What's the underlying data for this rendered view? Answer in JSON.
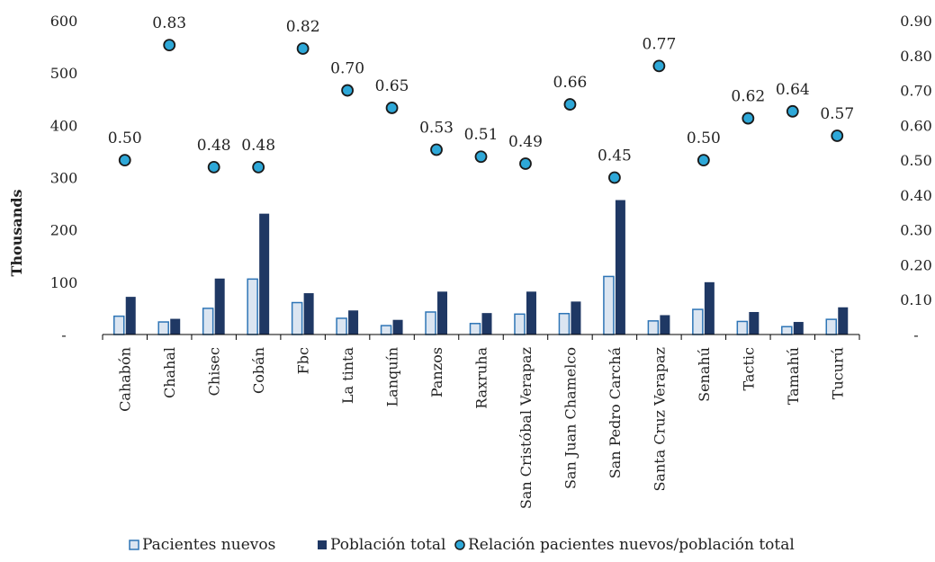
{
  "chart_data": {
    "type": "bar",
    "title": "",
    "xlabel": "",
    "ylabel": "Thousands",
    "categories": [
      "Cahabón",
      "Chahal",
      "Chisec",
      "Cobán",
      "Fbc",
      "La tinta",
      "Lanquín",
      "Panzos",
      "Raxruha",
      "San Cristóbal Verapaz",
      "San Juan Chamelco",
      "San Pedro Carchá",
      "Santa Cruz Verapaz",
      "Senahú",
      "Tactic",
      "Tamahú",
      "Tucurú"
    ],
    "series": [
      {
        "name": "Pacientes nuevos",
        "axis": "left",
        "type": "bar",
        "color": "#dbe5f1",
        "stroke": "#2e75b6",
        "values": [
          35,
          24,
          50,
          106,
          61,
          31,
          17,
          43,
          21,
          39,
          40,
          111,
          26,
          48,
          25,
          15,
          29
        ]
      },
      {
        "name": "Población total",
        "axis": "left",
        "type": "bar",
        "color": "#1f3864",
        "values": [
          72,
          30,
          107,
          231,
          79,
          46,
          28,
          82,
          41,
          82,
          63,
          257,
          37,
          100,
          43,
          24,
          52
        ]
      },
      {
        "name": "Relación pacientes nuevos/población total",
        "axis": "right",
        "type": "scatter",
        "color": "#2ea8d8",
        "stroke": "#1a1a1a",
        "values": [
          0.5,
          0.83,
          0.48,
          0.48,
          0.82,
          0.7,
          0.65,
          0.53,
          0.51,
          0.49,
          0.66,
          0.45,
          0.77,
          0.5,
          0.62,
          0.64,
          0.57
        ],
        "labels": [
          "0.50",
          "0.83",
          "0.48",
          "0.48",
          "0.82",
          "0.70",
          "0.65",
          "0.53",
          "0.51",
          "0.49",
          "0.66",
          "0.45",
          "0.77",
          "0.50",
          "0.62",
          "0.64",
          "0.57"
        ]
      }
    ],
    "y_left": {
      "min": 0,
      "max": 600,
      "ticks": [
        "-",
        "100",
        "200",
        "300",
        "400",
        "500",
        "600"
      ],
      "tick_values": [
        0,
        100,
        200,
        300,
        400,
        500,
        600
      ]
    },
    "y_right": {
      "min": 0,
      "max": 0.9,
      "ticks": [
        "-",
        "0.10",
        "0.20",
        "0.30",
        "0.40",
        "0.50",
        "0.60",
        "0.70",
        "0.80",
        "0.90"
      ],
      "tick_values": [
        0,
        0.1,
        0.2,
        0.3,
        0.4,
        0.5,
        0.6,
        0.7,
        0.8,
        0.9
      ]
    },
    "grid": false,
    "legend_position": "bottom"
  }
}
